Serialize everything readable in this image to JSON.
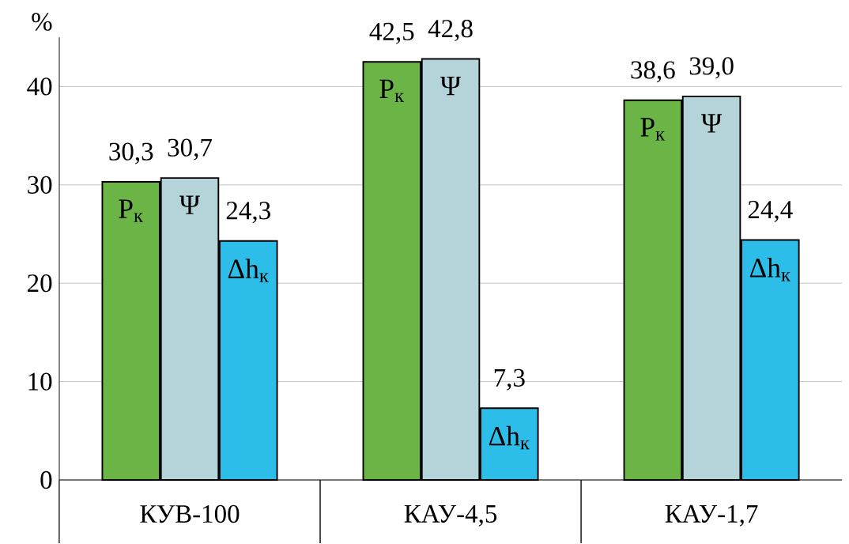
{
  "chart_data": {
    "type": "bar",
    "ylabel": "%",
    "categories": [
      "КУВ-100",
      "КАУ-4,5",
      "КАУ-1,7"
    ],
    "series": [
      {
        "name": "P$_{к}$",
        "color": "#6ab545",
        "values": [
          30.3,
          42.5,
          38.6
        ],
        "value_labels": [
          "30,3",
          "42,5",
          "38,6"
        ]
      },
      {
        "name": "Ψ",
        "color": "#b4d4da",
        "values": [
          30.7,
          42.8,
          39.0
        ],
        "value_labels": [
          "30,7",
          "42,8",
          "39,0"
        ]
      },
      {
        "name": "Δh$_{к}$",
        "color": "#2cbde8",
        "values": [
          24.3,
          7.3,
          24.4
        ],
        "value_labels": [
          "24,3",
          "7,3",
          "24,4"
        ]
      }
    ],
    "ylim": [
      0,
      45
    ],
    "yticks": [
      0,
      10,
      20,
      30,
      40
    ],
    "grid": "y"
  }
}
